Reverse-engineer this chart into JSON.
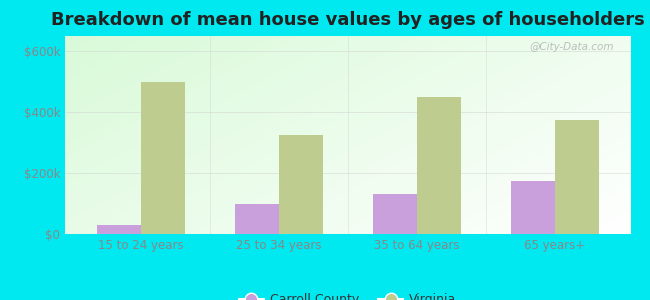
{
  "title": "Breakdown of mean house values by ages of householders",
  "categories": [
    "15 to 24 years",
    "25 to 34 years",
    "35 to 64 years",
    "65 years+"
  ],
  "carroll_county": [
    30000,
    100000,
    130000,
    175000
  ],
  "virginia": [
    500000,
    325000,
    450000,
    375000
  ],
  "carroll_color": "#c9a0dc",
  "virginia_color": "#bfcc8f",
  "outer_background": "#00e8f0",
  "ylabel_ticks": [
    0,
    200000,
    400000,
    600000
  ],
  "ylabel_labels": [
    "$0",
    "$200k",
    "$400k",
    "$600k"
  ],
  "ylim": [
    0,
    650000
  ],
  "legend_labels": [
    "Carroll County",
    "Virginia"
  ],
  "bar_width": 0.32,
  "title_fontsize": 13,
  "tick_fontsize": 8.5,
  "legend_fontsize": 9,
  "watermark": "@City-Data.com",
  "tick_color": "#888888",
  "title_color": "#222222"
}
